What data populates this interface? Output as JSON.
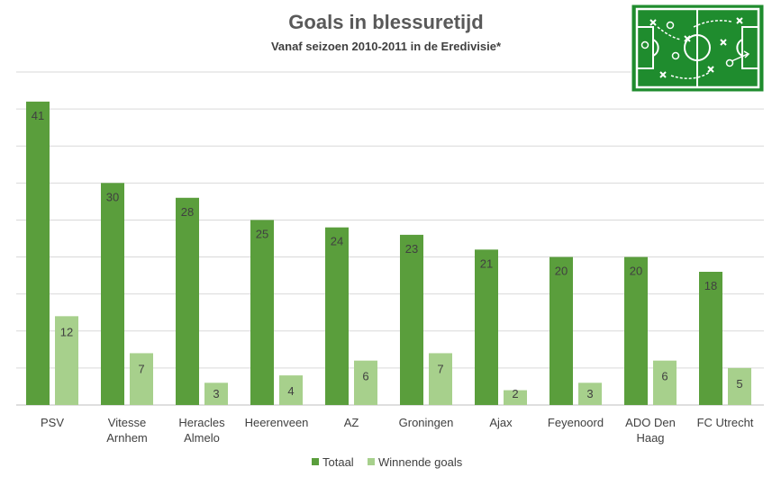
{
  "chart_data": {
    "type": "bar",
    "title": "Goals in blessuretijd",
    "subtitle": "Vanaf seizoen 2010-2011 in de Eredivisie*",
    "categories": [
      "PSV",
      "Vitesse\nArnhem",
      "Heracles\nAlmelo",
      "Heerenveen",
      "AZ",
      "Groningen",
      "Ajax",
      "Feyenoord",
      "ADO Den\nHaag",
      "FC Utrecht"
    ],
    "series": [
      {
        "name": "Totaal",
        "values": [
          41,
          30,
          28,
          25,
          24,
          23,
          21,
          20,
          20,
          18
        ],
        "color": "#5a9e3c"
      },
      {
        "name": "Winnende goals",
        "values": [
          12,
          7,
          3,
          4,
          6,
          7,
          2,
          3,
          6,
          5
        ],
        "color": "#a7d08c"
      }
    ],
    "ylim": [
      0,
      45
    ],
    "grid": true,
    "legend": "bottom-center",
    "xlabel": "",
    "ylabel": ""
  },
  "logo": {
    "icon": "football-tactics-board-icon",
    "color": "#1f8c2e"
  }
}
